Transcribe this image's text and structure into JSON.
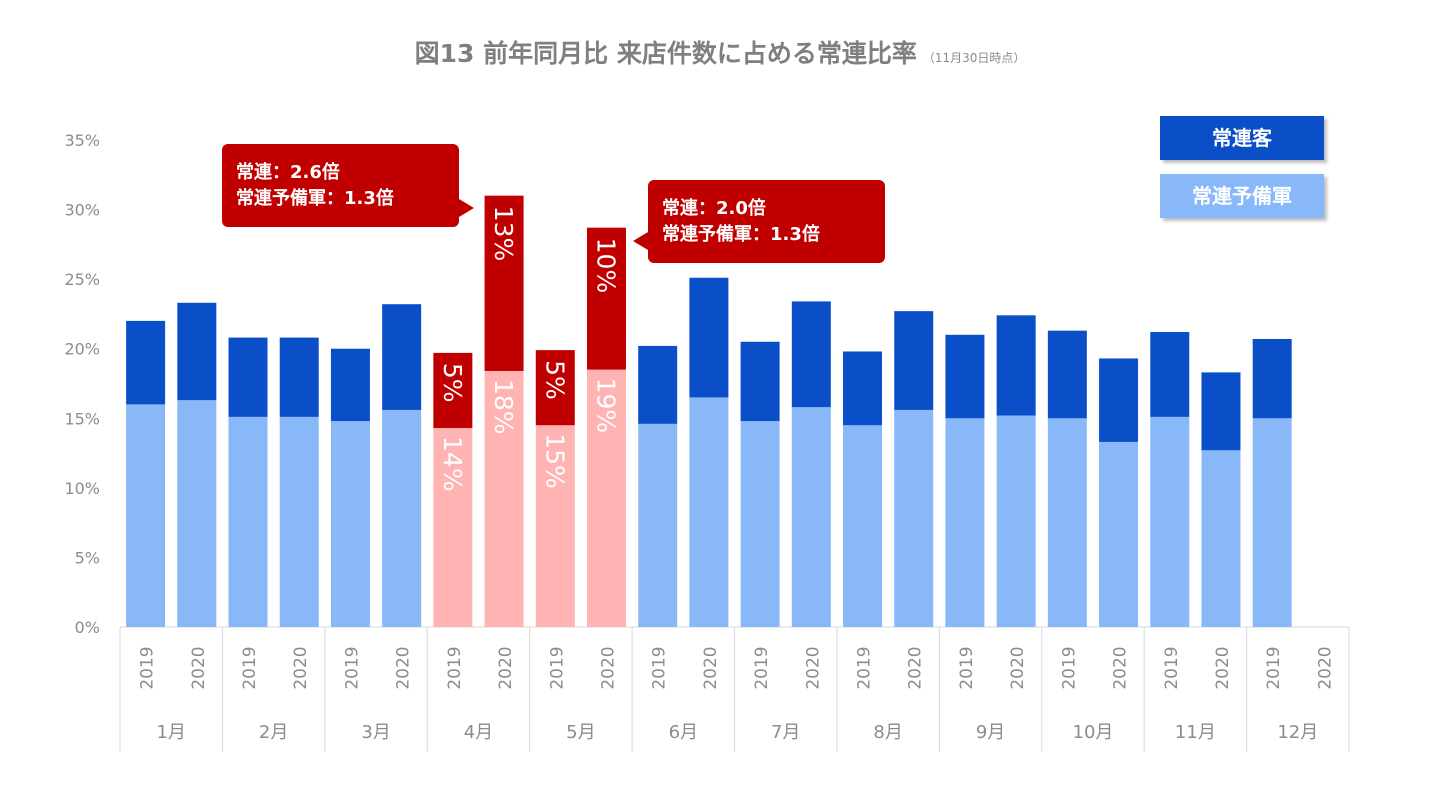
{
  "title": "図13 前年同月比 来店件数に占める常連比率",
  "title_note": "（11月30日時点）",
  "legend": [
    {
      "label": "常連客",
      "color": "#0b4fc8"
    },
    {
      "label": "常連予備軍",
      "color": "#89b8f8"
    }
  ],
  "colors": {
    "regular": "#0b4fc8",
    "reserve": "#89b8f8",
    "regular_highlight": "#c00000",
    "reserve_highlight": "#ffb3b3",
    "callout": "#c00000",
    "axis_text": "#8c8c8c",
    "grid": "#d9d9d9"
  },
  "callouts": [
    {
      "lines": [
        "常連：2.6倍",
        "常連予備軍：1.3倍"
      ],
      "month": "4月"
    },
    {
      "lines": [
        "常連：2.0倍",
        "常連予備軍：1.3倍"
      ],
      "month": "5月"
    }
  ],
  "chart_data": {
    "type": "bar",
    "stacked": true,
    "ylim": [
      0,
      35
    ],
    "yticks": [
      "0%",
      "5%",
      "10%",
      "15%",
      "20%",
      "25%",
      "30%",
      "35%"
    ],
    "ytick_values": [
      0,
      5,
      10,
      15,
      20,
      25,
      30,
      35
    ],
    "months": [
      "1月",
      "2月",
      "3月",
      "4月",
      "5月",
      "6月",
      "7月",
      "8月",
      "9月",
      "10月",
      "11月",
      "12月"
    ],
    "years": [
      "2019",
      "2020"
    ],
    "highlight_months": [
      "4月",
      "5月"
    ],
    "series": [
      {
        "name": "常連予備軍",
        "values": [
          16.0,
          16.3,
          15.1,
          15.1,
          14.8,
          15.6,
          14.3,
          18.4,
          14.5,
          18.5,
          14.6,
          16.5,
          14.8,
          15.8,
          14.5,
          15.6,
          15.0,
          15.2,
          15.0,
          13.3,
          15.1,
          12.7,
          15.0,
          null
        ]
      },
      {
        "name": "常連客",
        "values": [
          6.0,
          7.0,
          5.7,
          5.7,
          5.2,
          7.6,
          5.4,
          12.6,
          5.4,
          10.2,
          5.6,
          8.6,
          5.7,
          7.6,
          5.3,
          7.1,
          6.0,
          7.2,
          6.3,
          6.0,
          6.1,
          5.6,
          5.7,
          null
        ]
      }
    ],
    "data_labels": {
      "regular": {
        "6": "5%",
        "7": "13%",
        "8": "5%",
        "9": "10%"
      },
      "reserve": {
        "6": "14%",
        "7": "18%",
        "8": "15%",
        "9": "19%"
      }
    }
  }
}
